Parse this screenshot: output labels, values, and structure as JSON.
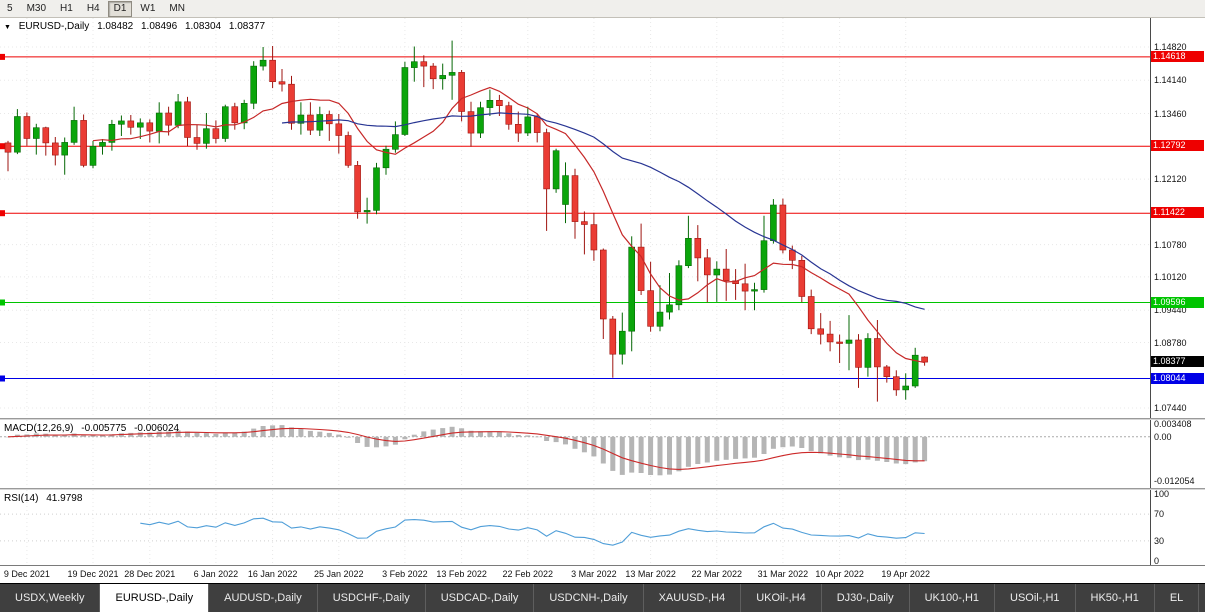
{
  "toolbar": {
    "timeframes": [
      "5",
      "M30",
      "H1",
      "H4",
      "D1",
      "W1",
      "MN"
    ],
    "active": "D1"
  },
  "chart_header": {
    "marker": "▼",
    "symbol": "EURUSD-,Daily",
    "open": "1.08482",
    "high": "1.08496",
    "low": "1.08304",
    "close": "1.08377"
  },
  "chart_data": {
    "type": "candlestick",
    "symbol": "EURUSD",
    "timeframe": "Daily",
    "price_range": {
      "top": 1.154128,
      "bottom": 1.072356
    },
    "colors": {
      "up": "#0ba50b",
      "up_border": "#056805",
      "down": "#ea3c34",
      "down_border": "#9e1510"
    },
    "y_axis_labels": [
      1.1482,
      1.1414,
      1.1346,
      1.1212,
      1.1078,
      1.1012,
      1.0944,
      1.0878,
      1.0744
    ],
    "levels": [
      {
        "price": 1.14618,
        "text": "1.14618",
        "color": "#ee0000"
      },
      {
        "price": 1.12792,
        "text": "1.12792",
        "color": "#ee0000"
      },
      {
        "price": 1.11422,
        "text": "1.11422",
        "color": "#ee0000"
      },
      {
        "price": 1.09596,
        "text": "1.09596",
        "color": "#00c400"
      },
      {
        "price": 1.08044,
        "text": "1.08044",
        "color": "#0000e6"
      }
    ],
    "current_price": {
      "text": "1.08377",
      "price": 1.08377,
      "bg": "#000000"
    },
    "moving_averages": [
      {
        "period": 10,
        "color": "#c62828"
      },
      {
        "period": 30,
        "color": "#283593"
      }
    ],
    "x_ticks": [
      {
        "label": "9 Dec 2021",
        "index": 2
      },
      {
        "label": "19 Dec 2021",
        "index": 9
      },
      {
        "label": "28 Dec 2021",
        "index": 15
      },
      {
        "label": "6 Jan 2022",
        "index": 22
      },
      {
        "label": "16 Jan 2022",
        "index": 28
      },
      {
        "label": "25 Jan 2022",
        "index": 35
      },
      {
        "label": "3 Feb 2022",
        "index": 42
      },
      {
        "label": "13 Feb 2022",
        "index": 48
      },
      {
        "label": "22 Feb 2022",
        "index": 55
      },
      {
        "label": "3 Mar 2022",
        "index": 62
      },
      {
        "label": "13 Mar 2022",
        "index": 68
      },
      {
        "label": "22 Mar 2022",
        "index": 75
      },
      {
        "label": "31 Mar 2022",
        "index": 82
      },
      {
        "label": "10 Apr 2022",
        "index": 88
      },
      {
        "label": "19 Apr 2022",
        "index": 95
      }
    ],
    "candles": [
      [
        1.1286,
        1.129,
        1.1228,
        1.1267
      ],
      [
        1.1267,
        1.1355,
        1.1263,
        1.134
      ],
      [
        1.134,
        1.1348,
        1.128,
        1.1295
      ],
      [
        1.1295,
        1.1325,
        1.1262,
        1.1317
      ],
      [
        1.1317,
        1.1319,
        1.126,
        1.1286
      ],
      [
        1.1286,
        1.1298,
        1.124,
        1.1261
      ],
      [
        1.1261,
        1.1297,
        1.1221,
        1.1287
      ],
      [
        1.1287,
        1.136,
        1.1282,
        1.1332
      ],
      [
        1.1332,
        1.1344,
        1.1236,
        1.124
      ],
      [
        1.124,
        1.129,
        1.1234,
        1.1279
      ],
      [
        1.1279,
        1.1294,
        1.1262,
        1.1287
      ],
      [
        1.1287,
        1.1333,
        1.127,
        1.1324
      ],
      [
        1.1324,
        1.1342,
        1.13,
        1.1331
      ],
      [
        1.1331,
        1.1343,
        1.1303,
        1.1318
      ],
      [
        1.1318,
        1.1336,
        1.1294,
        1.1327
      ],
      [
        1.1327,
        1.1334,
        1.1287,
        1.131
      ],
      [
        1.131,
        1.1369,
        1.1285,
        1.1347
      ],
      [
        1.1347,
        1.136,
        1.1301,
        1.1322
      ],
      [
        1.1322,
        1.1386,
        1.1316,
        1.137
      ],
      [
        1.137,
        1.138,
        1.1279,
        1.1297
      ],
      [
        1.1297,
        1.1323,
        1.1272,
        1.1285
      ],
      [
        1.1285,
        1.1347,
        1.1274,
        1.1315
      ],
      [
        1.1315,
        1.1332,
        1.1285,
        1.1295
      ],
      [
        1.1295,
        1.1364,
        1.1288,
        1.136
      ],
      [
        1.136,
        1.1368,
        1.1313,
        1.1327
      ],
      [
        1.1327,
        1.1374,
        1.1314,
        1.1367
      ],
      [
        1.1367,
        1.1453,
        1.1355,
        1.1443
      ],
      [
        1.1443,
        1.1482,
        1.1434,
        1.1455
      ],
      [
        1.1455,
        1.1484,
        1.1398,
        1.1411
      ],
      [
        1.1411,
        1.1437,
        1.1391,
        1.1406
      ],
      [
        1.1406,
        1.1423,
        1.1313,
        1.1326
      ],
      [
        1.1326,
        1.1369,
        1.1303,
        1.1343
      ],
      [
        1.1343,
        1.1369,
        1.1302,
        1.1312
      ],
      [
        1.1312,
        1.136,
        1.13,
        1.1344
      ],
      [
        1.1344,
        1.1352,
        1.129,
        1.1325
      ],
      [
        1.1325,
        1.1345,
        1.1264,
        1.1301
      ],
      [
        1.1301,
        1.1309,
        1.1235,
        1.124
      ],
      [
        1.124,
        1.1249,
        1.1131,
        1.1145
      ],
      [
        1.1145,
        1.1174,
        1.1121,
        1.1148
      ],
      [
        1.1148,
        1.1245,
        1.114,
        1.1235
      ],
      [
        1.1235,
        1.128,
        1.1221,
        1.1273
      ],
      [
        1.1273,
        1.133,
        1.1266,
        1.1303
      ],
      [
        1.1303,
        1.1452,
        1.13,
        1.144
      ],
      [
        1.144,
        1.1483,
        1.1411,
        1.1452
      ],
      [
        1.1452,
        1.1465,
        1.14,
        1.1443
      ],
      [
        1.1443,
        1.1449,
        1.1396,
        1.1417
      ],
      [
        1.1417,
        1.1448,
        1.1395,
        1.1424
      ],
      [
        1.1424,
        1.1495,
        1.1374,
        1.143
      ],
      [
        1.143,
        1.1435,
        1.133,
        1.135
      ],
      [
        1.135,
        1.137,
        1.1278,
        1.1306
      ],
      [
        1.1306,
        1.137,
        1.1296,
        1.1358
      ],
      [
        1.1358,
        1.1395,
        1.1341,
        1.1373
      ],
      [
        1.1373,
        1.1384,
        1.1341,
        1.1362
      ],
      [
        1.1362,
        1.137,
        1.1313,
        1.1324
      ],
      [
        1.1324,
        1.135,
        1.1288,
        1.1306
      ],
      [
        1.1306,
        1.136,
        1.13,
        1.1339
      ],
      [
        1.1339,
        1.1346,
        1.1287,
        1.1307
      ],
      [
        1.1307,
        1.1315,
        1.1106,
        1.1192
      ],
      [
        1.1192,
        1.1274,
        1.1184,
        1.127
      ],
      [
        1.116,
        1.1246,
        1.1122,
        1.1219
      ],
      [
        1.1219,
        1.1233,
        1.109,
        1.1125
      ],
      [
        1.1125,
        1.1146,
        1.1058,
        1.1119
      ],
      [
        1.1119,
        1.1143,
        1.1045,
        1.1067
      ],
      [
        1.1067,
        1.107,
        1.0885,
        1.0926
      ],
      [
        1.0926,
        1.0932,
        1.0806,
        1.0854
      ],
      [
        1.0854,
        1.0939,
        1.0833,
        1.0901
      ],
      [
        1.0901,
        1.1095,
        1.086,
        1.1073
      ],
      [
        1.1073,
        1.1121,
        1.0975,
        1.0984
      ],
      [
        1.0984,
        1.1043,
        1.09,
        1.0911
      ],
      [
        1.0911,
        1.0995,
        1.0901,
        1.094
      ],
      [
        1.094,
        1.102,
        1.0925,
        1.0955
      ],
      [
        1.0955,
        1.1046,
        1.0944,
        1.1035
      ],
      [
        1.1035,
        1.1137,
        1.103,
        1.1091
      ],
      [
        1.1091,
        1.1118,
        1.1003,
        1.1051
      ],
      [
        1.1051,
        1.1069,
        1.096,
        1.1016
      ],
      [
        1.1016,
        1.1044,
        1.0961,
        1.1028
      ],
      [
        1.1028,
        1.1069,
        1.0963,
        1.1004
      ],
      [
        1.1004,
        1.1028,
        1.0965,
        1.0998
      ],
      [
        1.0998,
        1.1039,
        1.0944,
        1.0983
      ],
      [
        1.0983,
        1.1,
        1.0944,
        1.0986
      ],
      [
        1.0986,
        1.1137,
        1.098,
        1.1086
      ],
      [
        1.1086,
        1.1171,
        1.108,
        1.1159
      ],
      [
        1.1159,
        1.1172,
        1.106,
        1.1067
      ],
      [
        1.1067,
        1.1076,
        1.1028,
        1.1046
      ],
      [
        1.1046,
        1.1055,
        1.096,
        1.0972
      ],
      [
        1.0972,
        1.0986,
        1.0895,
        1.0906
      ],
      [
        1.0906,
        1.0938,
        1.0874,
        1.0895
      ],
      [
        1.0895,
        1.0922,
        1.086,
        1.0879
      ],
      [
        1.0879,
        1.0894,
        1.0836,
        1.0876
      ],
      [
        1.0876,
        1.0934,
        1.0821,
        1.0883
      ],
      [
        1.0883,
        1.0895,
        1.0785,
        1.0827
      ],
      [
        1.0827,
        1.0897,
        1.0808,
        1.0886
      ],
      [
        1.0886,
        1.0924,
        1.0757,
        1.0828
      ],
      [
        1.0828,
        1.0832,
        1.0796,
        1.0808
      ],
      [
        1.0808,
        1.0821,
        1.0769,
        1.0781
      ],
      [
        1.0781,
        1.0815,
        1.0761,
        1.0789
      ],
      [
        1.0789,
        1.0867,
        1.0785,
        1.0852
      ],
      [
        1.08482,
        1.08496,
        1.08304,
        1.08377
      ]
    ]
  },
  "macd": {
    "label": "MACD(12,26,9)",
    "value_macd": "-0.005775",
    "value_signal": "-0.006024",
    "params": {
      "fast": 12,
      "slow": 26,
      "signal": 9
    },
    "range": {
      "top": 0.0046,
      "bottom": -0.014
    },
    "colors": {
      "histogram": "#b5b5b5",
      "signal": "#cc2929"
    },
    "axis_labels": [
      {
        "text": "0.003408",
        "value": 0.003408
      },
      {
        "text": "0.00",
        "value": 0
      },
      {
        "text": "-0.012054",
        "value": -0.012054
      }
    ]
  },
  "rsi": {
    "label": "RSI(14)",
    "value": "41.9798",
    "period": 14,
    "color": "#4f9ed8",
    "levels": [
      70,
      30
    ],
    "axis_labels": [
      {
        "text": "100",
        "value": 100
      },
      {
        "text": "70",
        "value": 70
      },
      {
        "text": "30",
        "value": 30
      },
      {
        "text": "0",
        "value": 0
      }
    ]
  },
  "tabs": {
    "items": [
      "USDX,Weekly",
      "EURUSD-,Daily",
      "AUDUSD-,Daily",
      "USDCHF-,Daily",
      "USDCAD-,Daily",
      "USDCNH-,Daily",
      "XAUUSD-,H4",
      "UKOil-,H4",
      "DJ30-,Daily",
      "UK100-,H1",
      "USOil-,H1",
      "HK50-,H1",
      "EL"
    ],
    "active": "EURUSD-,Daily"
  }
}
